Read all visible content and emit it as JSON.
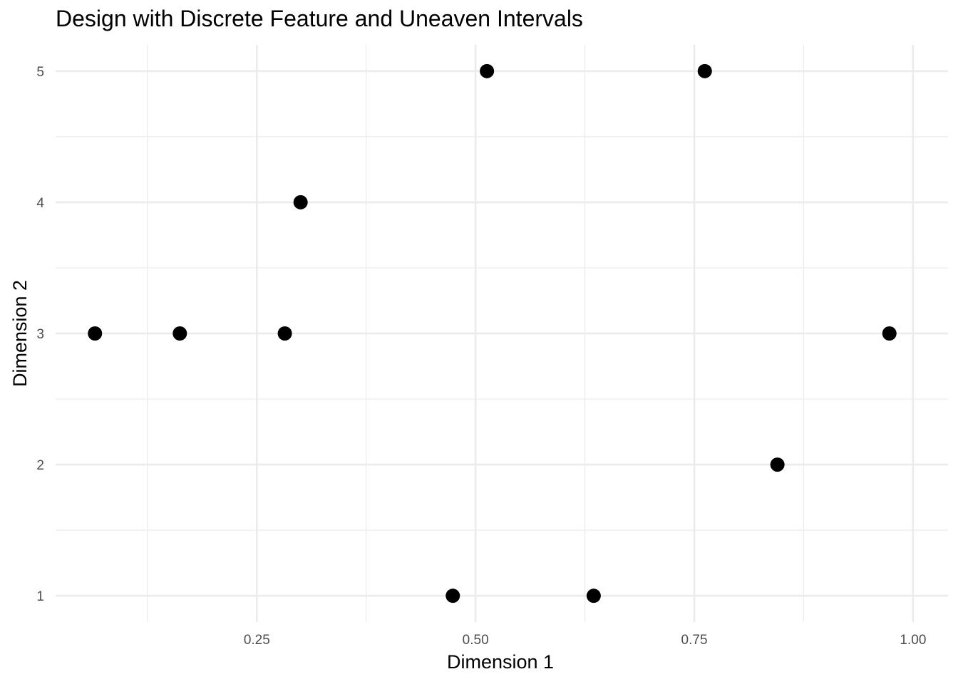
{
  "chart_data": {
    "type": "scatter",
    "title": "Design with Discrete Feature and Uneaven Intervals",
    "xlabel": "Dimension 1",
    "ylabel": "Dimension 2",
    "xlim": [
      0.02,
      1.04
    ],
    "ylim": [
      0.8,
      5.2
    ],
    "x_ticks": [
      0.25,
      0.5,
      0.75,
      1.0
    ],
    "x_tick_labels": [
      "0.25",
      "0.50",
      "0.75",
      "1.00"
    ],
    "y_ticks": [
      1,
      2,
      3,
      4,
      5
    ],
    "y_tick_labels": [
      "1",
      "2",
      "3",
      "4",
      "5"
    ],
    "x_minor_ticks": [
      0.125,
      0.375,
      0.625,
      0.875
    ],
    "y_minor_ticks": [
      1.5,
      2.5,
      3.5,
      4.5
    ],
    "grid": true,
    "legend": "none",
    "point_color": "#000000",
    "grid_color": "#ebebeb",
    "points": [
      {
        "x": 0.065,
        "y": 3
      },
      {
        "x": 0.162,
        "y": 3
      },
      {
        "x": 0.282,
        "y": 3
      },
      {
        "x": 0.3,
        "y": 4
      },
      {
        "x": 0.474,
        "y": 1
      },
      {
        "x": 0.513,
        "y": 5
      },
      {
        "x": 0.635,
        "y": 1
      },
      {
        "x": 0.762,
        "y": 5
      },
      {
        "x": 0.845,
        "y": 2
      },
      {
        "x": 0.973,
        "y": 3
      }
    ]
  }
}
